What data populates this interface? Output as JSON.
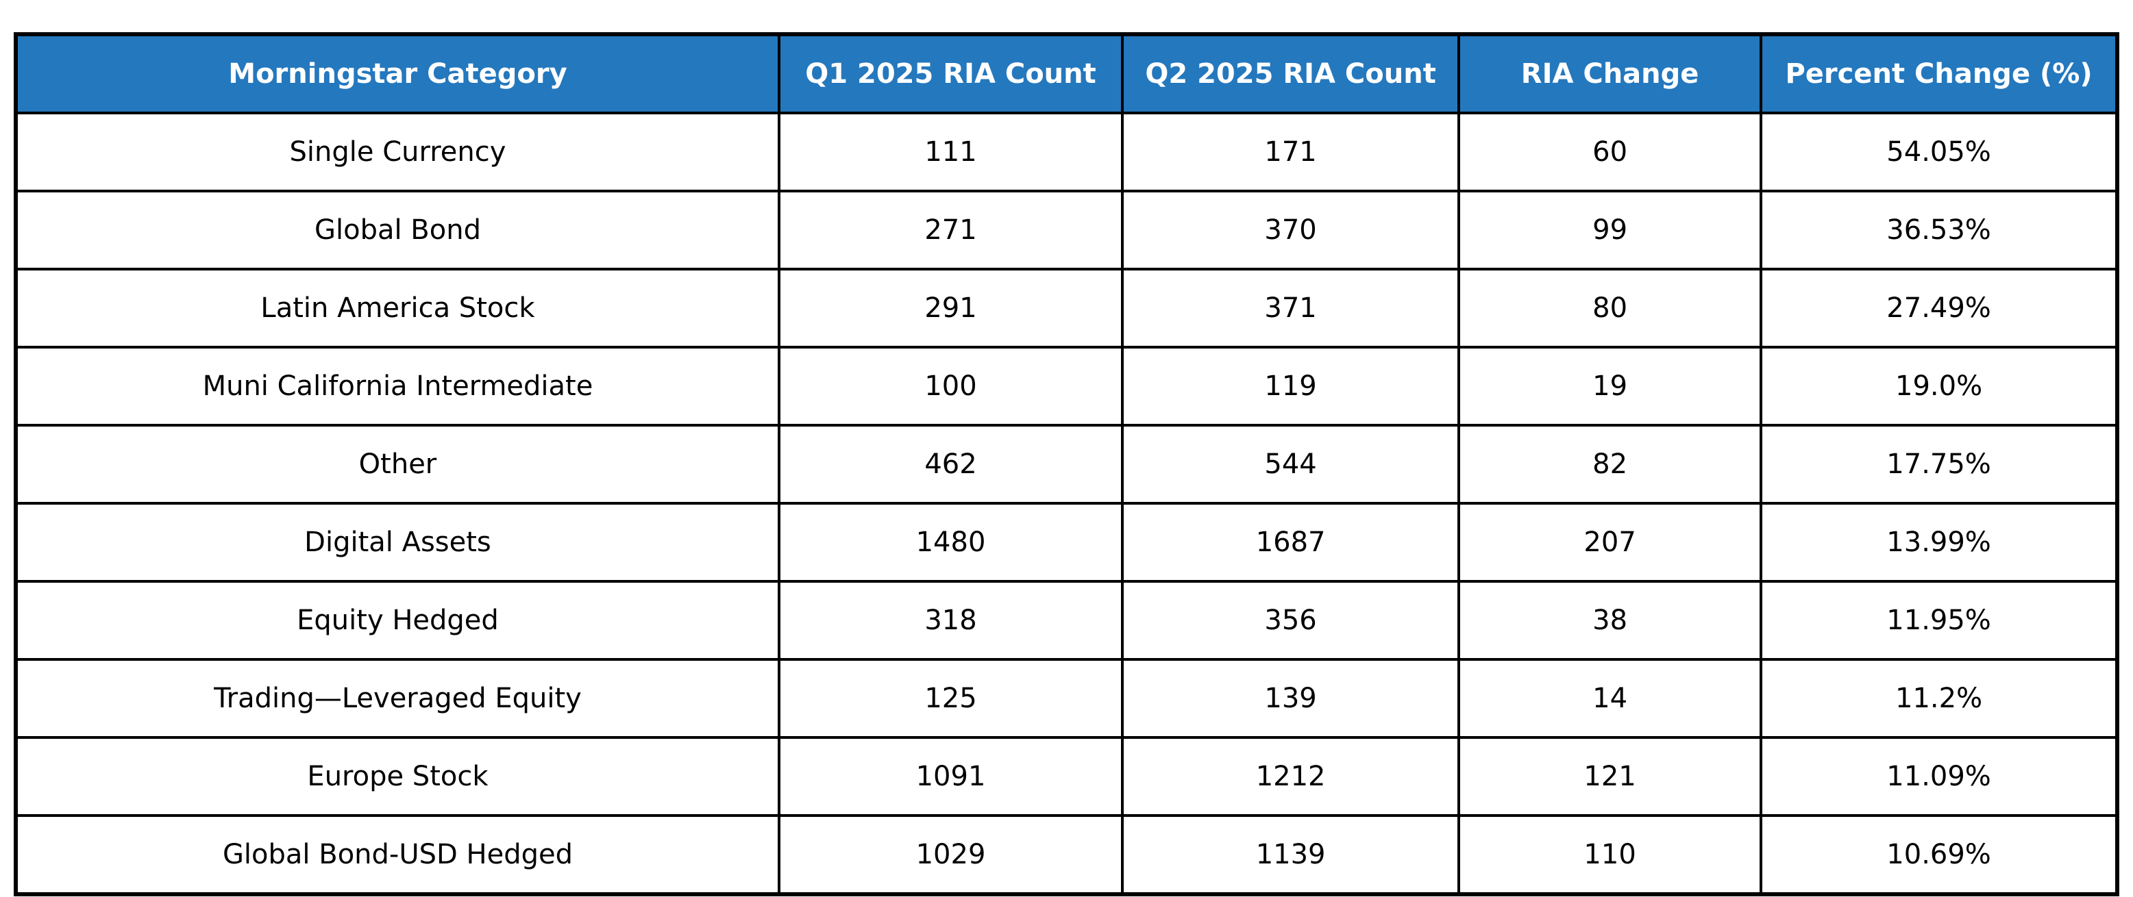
{
  "colors": {
    "header_bg": "#2478BE",
    "header_text": "#FFFFFF",
    "grid": "#000000",
    "cell_bg": "#FFFFFF",
    "cell_text": "#000000"
  },
  "table": {
    "columns": [
      "Morningstar Category",
      "Q1 2025 RIA Count",
      "Q2 2025 RIA Count",
      "RIA Change",
      "Percent Change (%)"
    ],
    "rows": [
      [
        "Single Currency",
        "111",
        "171",
        "60",
        "54.05%"
      ],
      [
        "Global Bond",
        "271",
        "370",
        "99",
        "36.53%"
      ],
      [
        "Latin America Stock",
        "291",
        "371",
        "80",
        "27.49%"
      ],
      [
        "Muni California Intermediate",
        "100",
        "119",
        "19",
        "19.0%"
      ],
      [
        "Other",
        "462",
        "544",
        "82",
        "17.75%"
      ],
      [
        "Digital Assets",
        "1480",
        "1687",
        "207",
        "13.99%"
      ],
      [
        "Equity Hedged",
        "318",
        "356",
        "38",
        "11.95%"
      ],
      [
        "Trading—Leveraged Equity",
        "125",
        "139",
        "14",
        "11.2%"
      ],
      [
        "Europe Stock",
        "1091",
        "1212",
        "121",
        "11.09%"
      ],
      [
        "Global Bond-USD Hedged",
        "1029",
        "1139",
        "110",
        "10.69%"
      ]
    ]
  },
  "chart_data": {
    "type": "table",
    "title": "",
    "columns": [
      "Morningstar Category",
      "Q1 2025 RIA Count",
      "Q2 2025 RIA Count",
      "RIA Change",
      "Percent Change (%)"
    ],
    "categories": [
      "Single Currency",
      "Global Bond",
      "Latin America Stock",
      "Muni California Intermediate",
      "Other",
      "Digital Assets",
      "Equity Hedged",
      "Trading—Leveraged Equity",
      "Europe Stock",
      "Global Bond-USD Hedged"
    ],
    "series": [
      {
        "name": "Q1 2025 RIA Count",
        "values": [
          111,
          271,
          291,
          100,
          462,
          1480,
          318,
          125,
          1091,
          1029
        ]
      },
      {
        "name": "Q2 2025 RIA Count",
        "values": [
          171,
          370,
          371,
          119,
          544,
          1687,
          356,
          139,
          1212,
          1139
        ]
      },
      {
        "name": "RIA Change",
        "values": [
          60,
          99,
          80,
          19,
          82,
          207,
          38,
          14,
          121,
          110
        ]
      },
      {
        "name": "Percent Change (%)",
        "values": [
          54.05,
          36.53,
          27.49,
          19.0,
          17.75,
          13.99,
          11.95,
          11.2,
          11.09,
          10.69
        ]
      }
    ],
    "layout": {
      "header_bg": "#2478BE",
      "header_text_color": "#FFFFFF",
      "grid": "on",
      "cell_alignment": "center"
    }
  }
}
